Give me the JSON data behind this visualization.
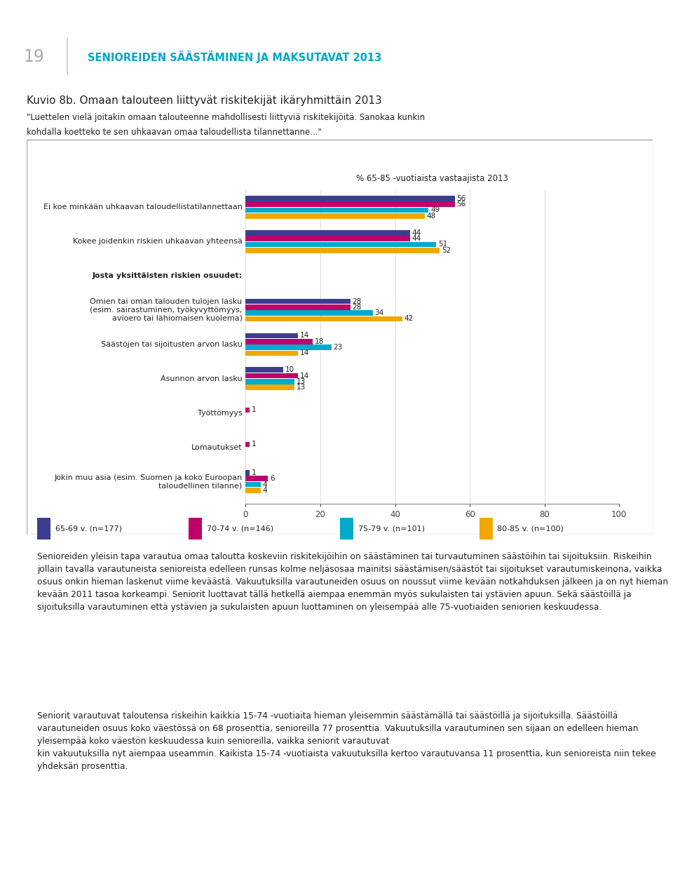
{
  "title_main": "Kuvio 8b. Omaan talouteen liittyvät riskitekijät ikäryhmittäin 2013",
  "header_text_line1": "\"Luettelen vielä joitakin omaan talouteenne mahdollisesti liittyviä riskitekijöitä. Sanokaa kunkin",
  "header_text_line2": "kohdalla koetteko te sen uhkaavan omaa taloudellista tilannettanne...\"",
  "chart_subtitle": "% 65-85 -vuotiaista vastaajista 2013",
  "page_number": "19",
  "header_title": "SENIOREIDEN SÄÄSTÄMINEN JA MAKSUTAVAT 2013",
  "cat_labels": [
    "Ei koe minkään uhkaavan taloudellistatilannettaan",
    "Kokee joidenkin riskien uhkaavan yhteensä",
    "Josta yksittäisten riskien osuudet:",
    "Omien tai oman talouden tulojen lasku\n(esim. sairastuminen, työkyvyttömyys,\navioero tai lähiomaisen kuolema)",
    "Säästöjen tai sijoitusten arvon lasku",
    "Asunnon arvon lasku",
    "Työttömyys",
    "Lomautukset",
    "Jokin muu asia (esim. Suomen ja koko Euroopan\ntaloudellinen tilanne)"
  ],
  "cat_bold": [
    false,
    false,
    true,
    false,
    false,
    false,
    false,
    false,
    false
  ],
  "cat_indent": [
    false,
    false,
    false,
    true,
    true,
    true,
    true,
    true,
    true
  ],
  "series_names": [
    "65-69 v. (n=177)",
    "70-74 v. (n=146)",
    "75-79 v. (n=101)",
    "80-85 v. (n=100)"
  ],
  "series_values": [
    [
      56,
      44,
      28,
      14,
      10,
      0,
      0,
      1
    ],
    [
      56,
      44,
      28,
      18,
      14,
      1,
      1,
      6
    ],
    [
      49,
      51,
      34,
      23,
      13,
      0,
      0,
      4
    ],
    [
      48,
      52,
      42,
      14,
      13,
      0,
      0,
      4
    ]
  ],
  "bar_cats": [
    0,
    1,
    3,
    4,
    5,
    6,
    7,
    8
  ],
  "colors": [
    "#3d3d8f",
    "#c0006a",
    "#00aacc",
    "#f0a800"
  ],
  "xlim": [
    0,
    100
  ],
  "xticks": [
    0,
    20,
    40,
    60,
    80,
    100
  ],
  "footer_text_1": "Senioreiden yleisin tapa varautua omaa taloutta koskeviin riskitekijöihin on säästäminen tai turvautuminen säästöihin tai sijoituksiin. Riskeihin jollain tavalla varautuneista senioreista edelleen runsas kolme neljäsosaa mainitsi säästämisen/säästöt tai sijoitukset varautumiskeinona, vaikka osuus onkin hieman laskenut viime keväästä. Vakuutuksilla varautuneiden osuus on noussut viime kevään notkahduksen jälkeen ja on nyt hieman kevään 2011 tasoa korkeampi. Seniorit luottavat tällä hetkellä aiempaa enemmän myös sukulaisten tai ystävien apuun. Sekä säästöillä ja sijoituksilla varautuminen että ystävien ja sukulaisten apuun luottaminen on yleisempää alle 75-vuotiaiden seniorien keskuudessa.",
  "footer_text_2": "Seniorit varautuvat taloutensa riskeihin kaikkia 15-74 -vuotiaita hieman yleisemmin säästämällä tai säästöillä ja sijoituksilla. Säästöillä varautuneiden osuus koko väestössä on 68 prosenttia, senioreilla 77 prosenttia. Vakuutuksilla varautuminen sen sijaan on edelleen hieman yleisempää koko väestön keskuudessa kuin senioreilla, vaikka seniorit varautuvat\nkin vakuutuksilla nyt aiempaa useammin. Kaikista 15-74 -vuotiaista vakuutuksilla kertoo varautuvansa 11 prosenttia, kun senioreista niin tekee yhdeksän prosenttia."
}
